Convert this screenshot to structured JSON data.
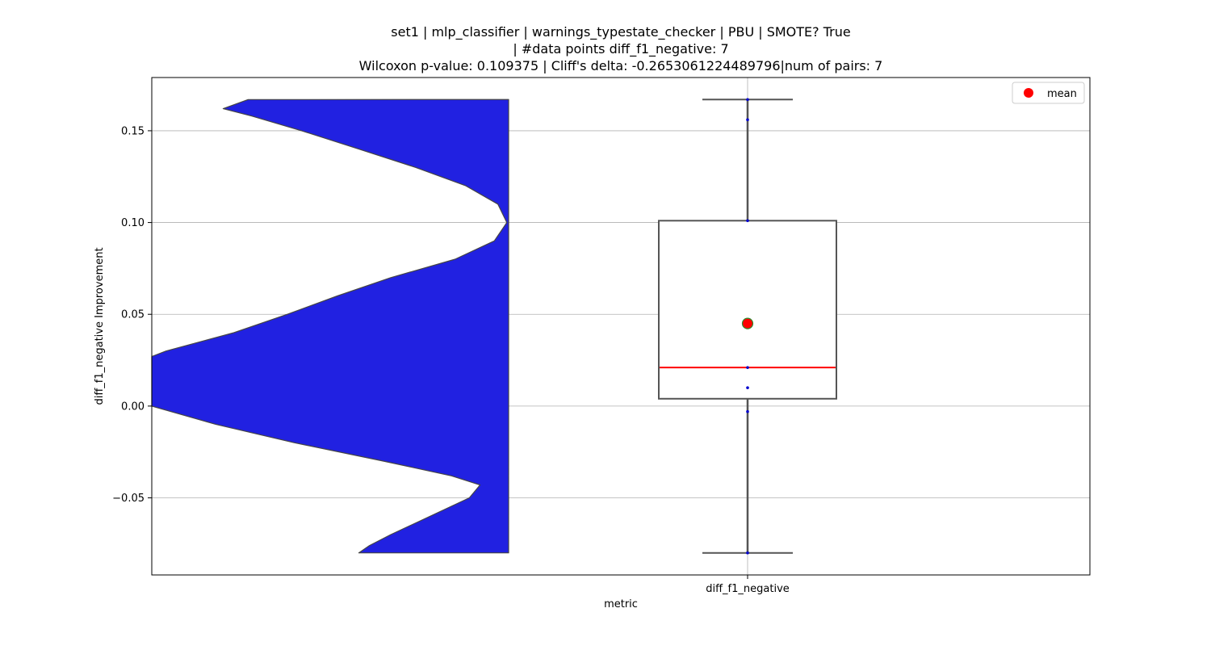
{
  "chart_data": {
    "type": "violin+box",
    "title_lines": [
      "set1 | mlp_classifier | warnings_typestate_checker | PBU | SMOTE? True",
      "| #data points diff_f1_negative: 7",
      "Wilcoxon p-value: 0.109375 | Cliff's delta: -0.2653061224489796|num of pairs: 7"
    ],
    "xlabel": "metric",
    "ylabel": "diff_f1_negative Improvement",
    "categories": [
      "diff_f1_negative"
    ],
    "ylim": [
      -0.092,
      0.179
    ],
    "yticks": [
      -0.05,
      0.0,
      0.05,
      0.1,
      0.15
    ],
    "ytick_labels": [
      "−0.05",
      "0.00",
      "0.05",
      "0.10",
      "0.15"
    ],
    "grid": true,
    "legend": {
      "position": "top-right",
      "entries": [
        {
          "label": "mean",
          "color": "#ff0000"
        }
      ]
    },
    "box": {
      "min": -0.08,
      "q1": 0.004,
      "median": 0.021,
      "q3": 0.101,
      "max": 0.167,
      "mean": 0.045
    },
    "points": [
      0.167,
      0.156,
      0.101,
      0.021,
      0.01,
      -0.003,
      -0.08
    ],
    "violin_density": [
      [
        0.167,
        0.73
      ],
      [
        0.162,
        0.8
      ],
      [
        0.158,
        0.72
      ],
      [
        0.15,
        0.58
      ],
      [
        0.14,
        0.42
      ],
      [
        0.13,
        0.26
      ],
      [
        0.12,
        0.12
      ],
      [
        0.11,
        0.03
      ],
      [
        0.1,
        0.005
      ],
      [
        0.09,
        0.04
      ],
      [
        0.08,
        0.15
      ],
      [
        0.07,
        0.33
      ],
      [
        0.06,
        0.48
      ],
      [
        0.05,
        0.62
      ],
      [
        0.04,
        0.77
      ],
      [
        0.03,
        0.96
      ],
      [
        0.027,
        1.0
      ],
      [
        0.015,
        1.0
      ],
      [
        0.0,
        1.0
      ],
      [
        -0.01,
        0.82
      ],
      [
        -0.02,
        0.6
      ],
      [
        -0.03,
        0.35
      ],
      [
        -0.038,
        0.16
      ],
      [
        -0.043,
        0.08
      ],
      [
        -0.05,
        0.11
      ],
      [
        -0.06,
        0.22
      ],
      [
        -0.07,
        0.33
      ],
      [
        -0.076,
        0.39
      ],
      [
        -0.08,
        0.42
      ]
    ],
    "colors": {
      "violin_fill": "#2121e1",
      "violin_edge": "#444444",
      "box_edge": "#555555",
      "median": "#ff0000",
      "mean_fill": "#ff0000",
      "mean_edge": "#2e8b2e",
      "points": "#0000cc",
      "grid": "#b0b0b0"
    }
  }
}
